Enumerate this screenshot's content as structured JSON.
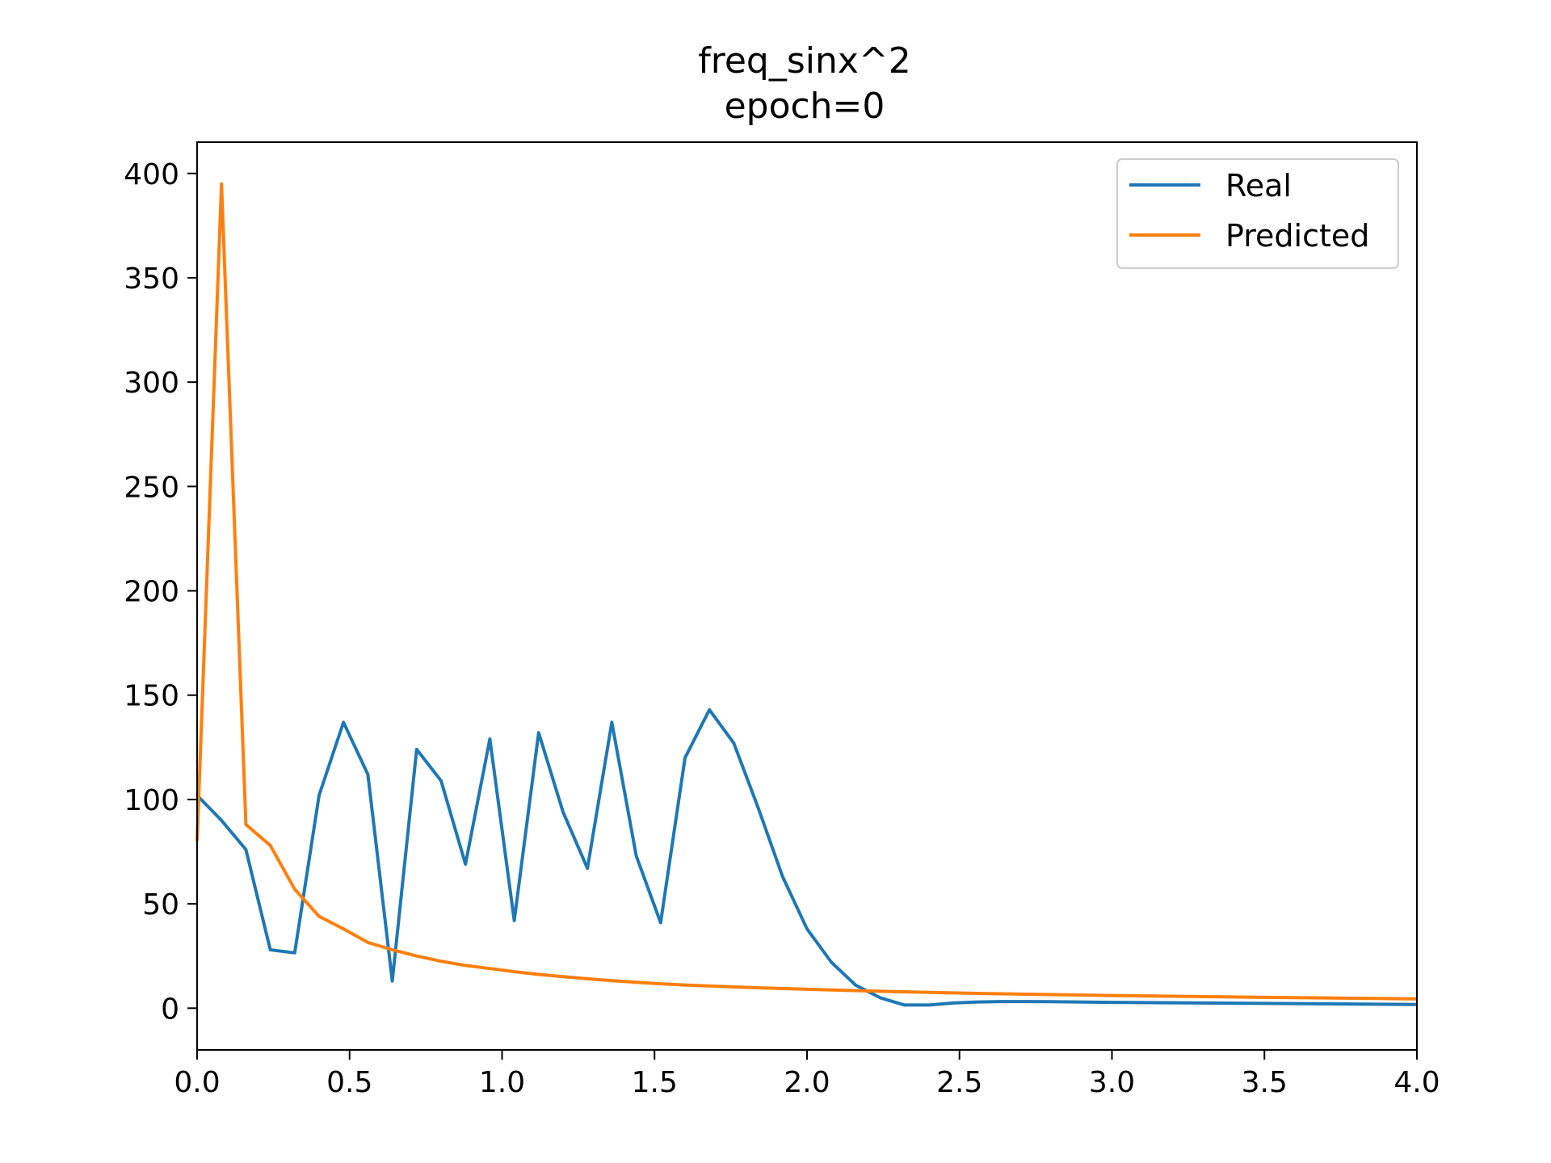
{
  "chart_data": {
    "type": "line",
    "title": "freq_sinx^2",
    "subtitle": "epoch=0",
    "xlabel": "",
    "ylabel": "",
    "xlim": [
      0.0,
      4.0
    ],
    "ylim": [
      -20,
      415
    ],
    "xticks": [
      0.0,
      0.5,
      1.0,
      1.5,
      2.0,
      2.5,
      3.0,
      3.5,
      4.0
    ],
    "xtick_labels": [
      "0.0",
      "0.5",
      "1.0",
      "1.5",
      "2.0",
      "2.5",
      "3.0",
      "3.5",
      "4.0"
    ],
    "yticks": [
      0,
      50,
      100,
      150,
      200,
      250,
      300,
      350,
      400
    ],
    "ytick_labels": [
      "0",
      "50",
      "100",
      "150",
      "200",
      "250",
      "300",
      "350",
      "400"
    ],
    "grid": false,
    "legend_position": "top-right",
    "series": [
      {
        "name": "Real",
        "color": "#1f77b4",
        "x": [
          0.0,
          0.08,
          0.16,
          0.24,
          0.32,
          0.4,
          0.48,
          0.56,
          0.64,
          0.72,
          0.8,
          0.88,
          0.96,
          1.04,
          1.12,
          1.2,
          1.28,
          1.36,
          1.44,
          1.52,
          1.6,
          1.68,
          1.76,
          1.84,
          1.92,
          2.0,
          2.08,
          2.16,
          2.24,
          2.32,
          2.4,
          2.48,
          2.56,
          2.64,
          2.72,
          2.8,
          3.0,
          3.5,
          4.0
        ],
        "y": [
          102,
          90,
          76,
          28,
          26.5,
          102,
          137,
          112,
          13,
          124,
          109,
          69,
          129,
          42,
          132,
          94,
          67,
          137,
          73,
          41,
          120,
          143,
          127,
          96,
          63,
          38,
          22,
          11,
          5,
          1.5,
          1.5,
          2.5,
          3,
          3.2,
          3.2,
          3.1,
          2.8,
          2.3,
          1.8
        ]
      },
      {
        "name": "Predicted",
        "color": "#ff7f0e",
        "x": [
          0.0,
          0.08,
          0.16,
          0.24,
          0.32,
          0.4,
          0.48,
          0.56,
          0.64,
          0.72,
          0.8,
          0.88,
          0.96,
          1.04,
          1.12,
          1.2,
          1.28,
          1.36,
          1.44,
          1.52,
          1.6,
          1.76,
          1.92,
          2.08,
          2.24,
          2.4,
          2.56,
          2.72,
          3.0,
          3.5,
          4.0
        ],
        "y": [
          80,
          395,
          88,
          78,
          57,
          44,
          38,
          31.5,
          28,
          25,
          22.5,
          20.5,
          19,
          17.5,
          16.2,
          15.1,
          14.1,
          13.2,
          12.4,
          11.7,
          11.1,
          10.2,
          9.4,
          8.7,
          8.1,
          7.6,
          7.1,
          6.7,
          6.1,
          5.2,
          4.5
        ]
      }
    ]
  }
}
